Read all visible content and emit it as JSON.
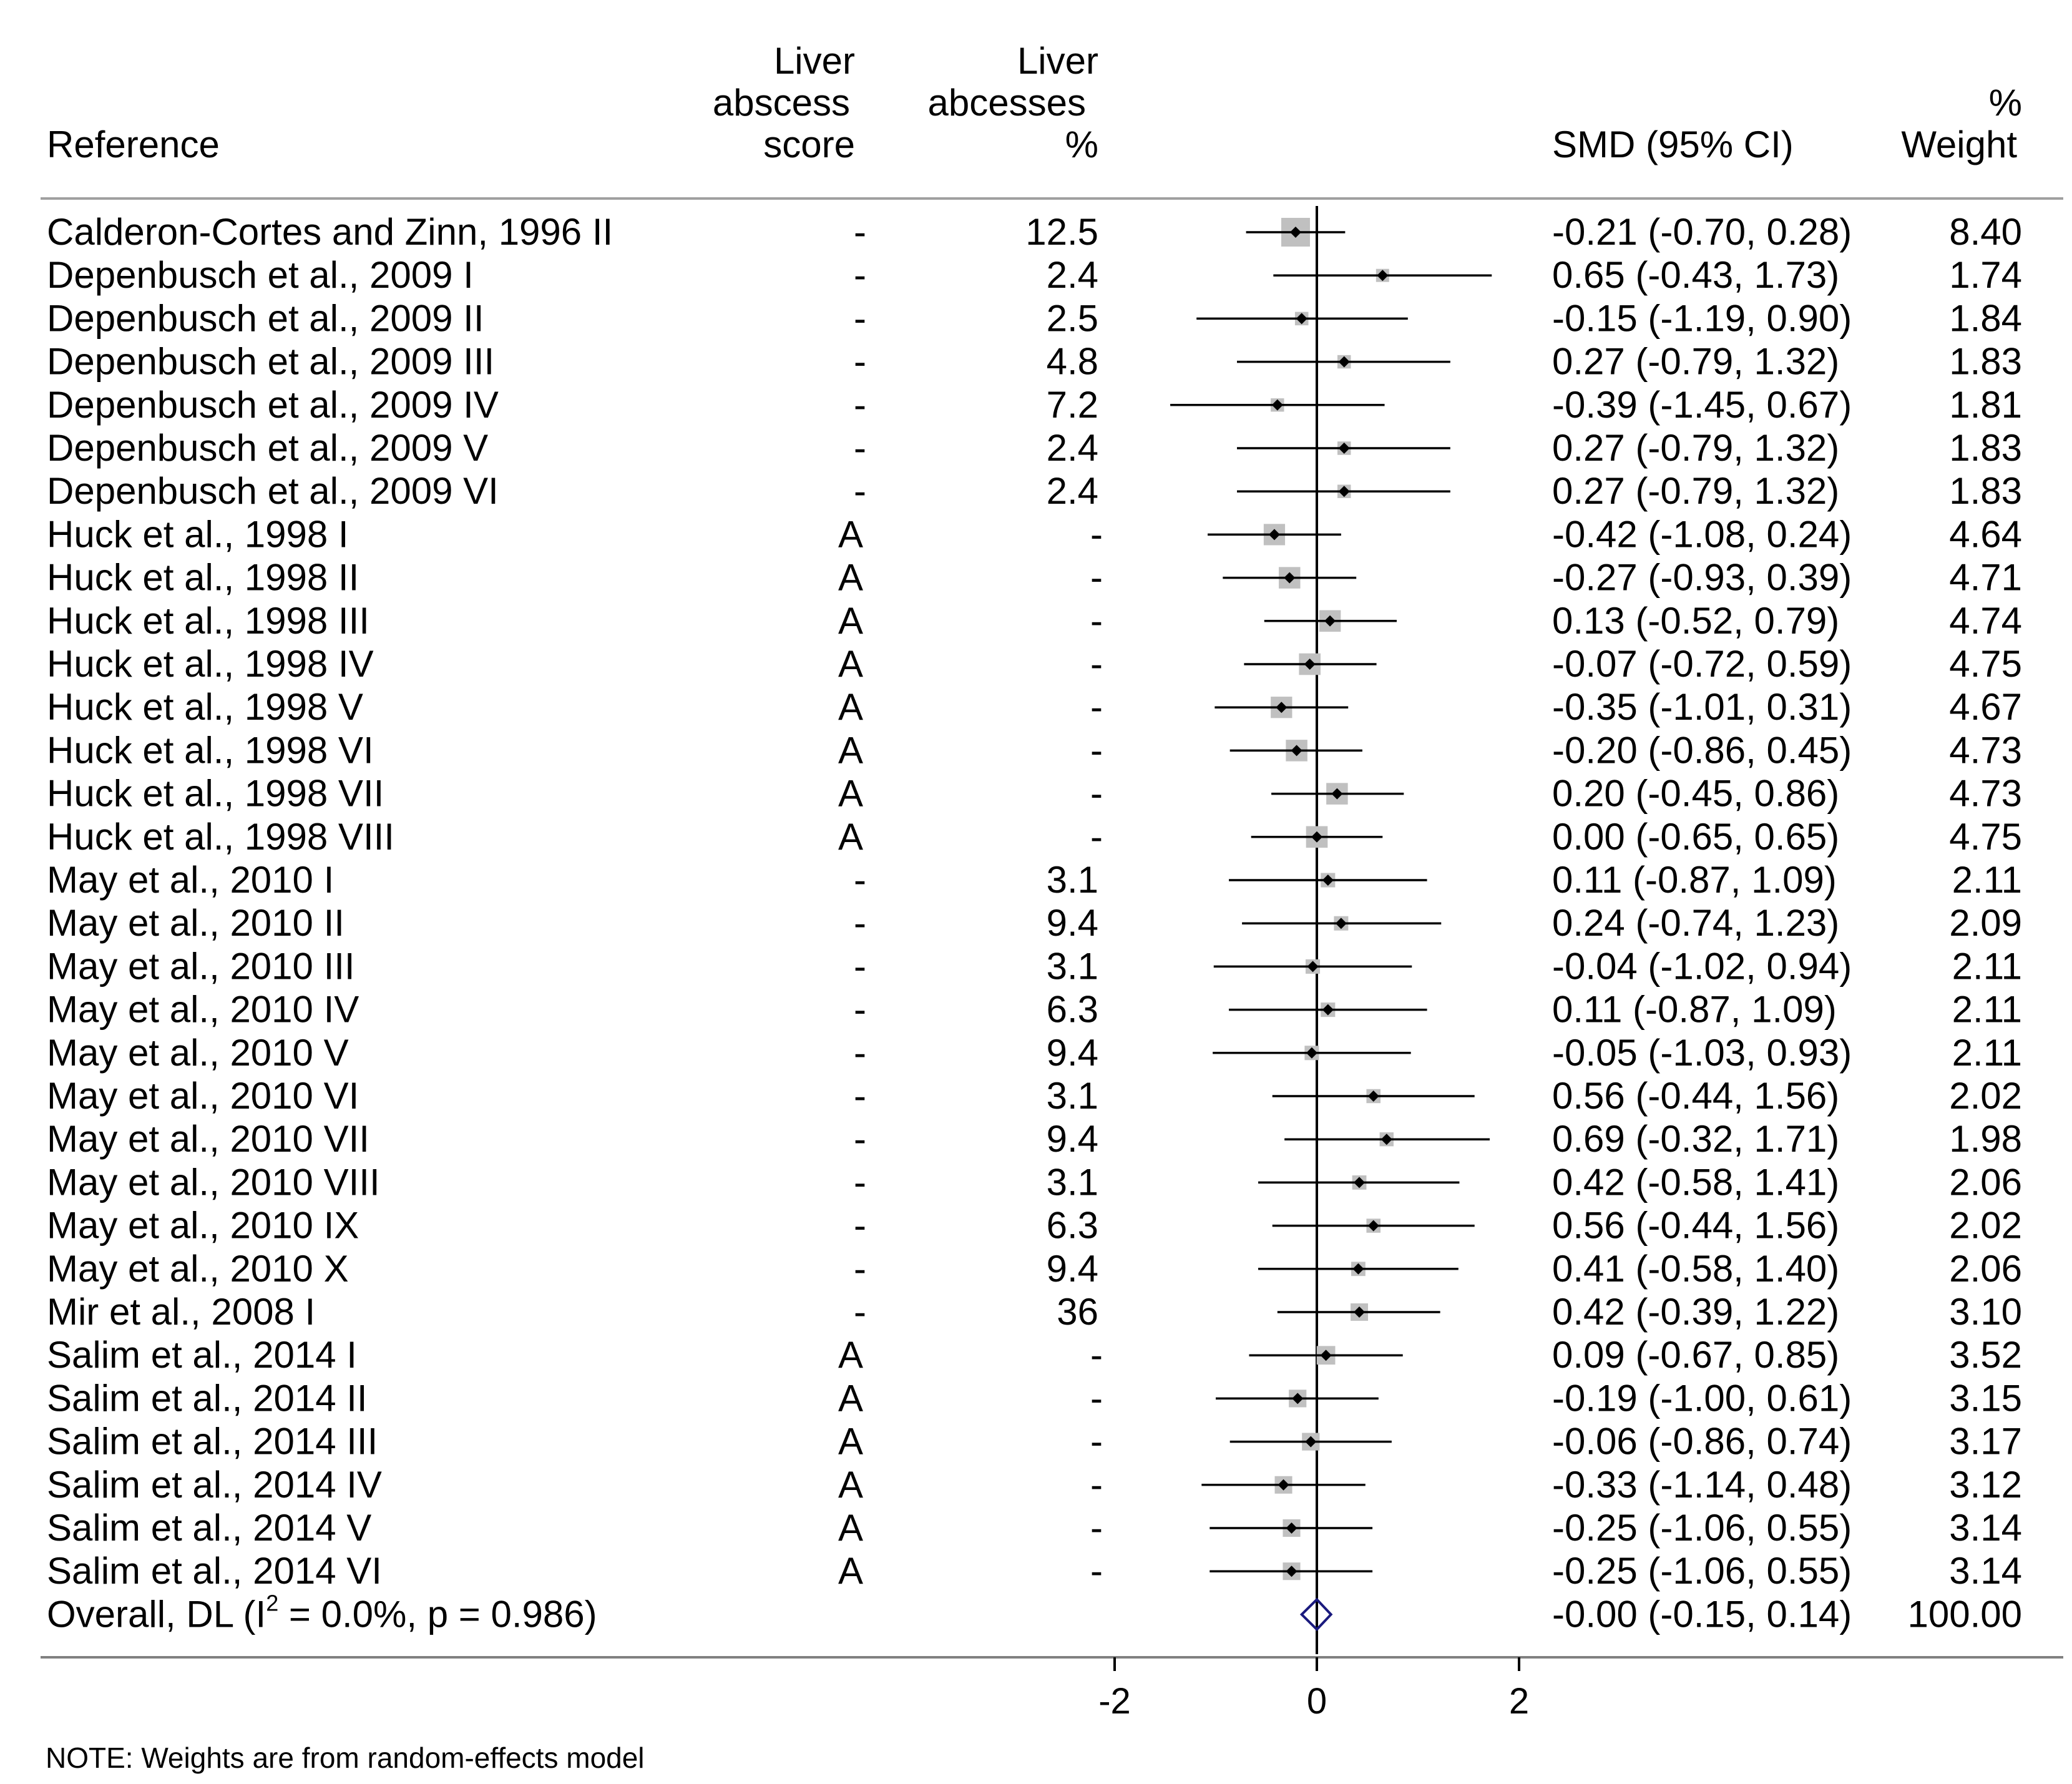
{
  "chart_data": {
    "type": "forest",
    "headers": {
      "reference": "Reference",
      "score": [
        "Liver",
        "abscess",
        "score"
      ],
      "abscesses": [
        "Liver",
        "abcesses",
        "%"
      ],
      "smd": "SMD (95% CI)",
      "weight": [
        "%",
        "Weight"
      ]
    },
    "studies": [
      {
        "label": "Calderon-Cortes and Zinn, 1996 II",
        "score": "-",
        "pct": "12.5",
        "smd": -0.21,
        "lo": -0.7,
        "hi": 0.28,
        "ci_text": "-0.21 (-0.70, 0.28)",
        "weight": 8.4,
        "weight_text": "8.40"
      },
      {
        "label": "Depenbusch et al., 2009 I",
        "score": "-",
        "pct": "2.4",
        "smd": 0.65,
        "lo": -0.43,
        "hi": 1.73,
        "ci_text": "0.65 (-0.43, 1.73)",
        "weight": 1.74,
        "weight_text": "1.74"
      },
      {
        "label": "Depenbusch et al., 2009 II",
        "score": "-",
        "pct": "2.5",
        "smd": -0.15,
        "lo": -1.19,
        "hi": 0.9,
        "ci_text": "-0.15 (-1.19, 0.90)",
        "weight": 1.84,
        "weight_text": "1.84"
      },
      {
        "label": "Depenbusch et al., 2009 III",
        "score": "-",
        "pct": "4.8",
        "smd": 0.27,
        "lo": -0.79,
        "hi": 1.32,
        "ci_text": "0.27 (-0.79, 1.32)",
        "weight": 1.83,
        "weight_text": "1.83"
      },
      {
        "label": "Depenbusch et al., 2009 IV",
        "score": "-",
        "pct": "7.2",
        "smd": -0.39,
        "lo": -1.45,
        "hi": 0.67,
        "ci_text": "-0.39 (-1.45, 0.67)",
        "weight": 1.81,
        "weight_text": "1.81"
      },
      {
        "label": "Depenbusch et al., 2009 V",
        "score": "-",
        "pct": "2.4",
        "smd": 0.27,
        "lo": -0.79,
        "hi": 1.32,
        "ci_text": "0.27 (-0.79, 1.32)",
        "weight": 1.83,
        "weight_text": "1.83"
      },
      {
        "label": "Depenbusch et al., 2009 VI",
        "score": "-",
        "pct": "2.4",
        "smd": 0.27,
        "lo": -0.79,
        "hi": 1.32,
        "ci_text": "0.27 (-0.79, 1.32)",
        "weight": 1.83,
        "weight_text": "1.83"
      },
      {
        "label": "Huck et al., 1998 I",
        "score": "A",
        "pct": "-",
        "smd": -0.42,
        "lo": -1.08,
        "hi": 0.24,
        "ci_text": "-0.42 (-1.08, 0.24)",
        "weight": 4.64,
        "weight_text": "4.64"
      },
      {
        "label": "Huck et al., 1998 II",
        "score": "A",
        "pct": "-",
        "smd": -0.27,
        "lo": -0.93,
        "hi": 0.39,
        "ci_text": "-0.27 (-0.93, 0.39)",
        "weight": 4.71,
        "weight_text": "4.71"
      },
      {
        "label": "Huck et al., 1998 III",
        "score": "A",
        "pct": "-",
        "smd": 0.13,
        "lo": -0.52,
        "hi": 0.79,
        "ci_text": "0.13 (-0.52, 0.79)",
        "weight": 4.74,
        "weight_text": "4.74"
      },
      {
        "label": "Huck et al., 1998 IV",
        "score": "A",
        "pct": "-",
        "smd": -0.07,
        "lo": -0.72,
        "hi": 0.59,
        "ci_text": "-0.07 (-0.72, 0.59)",
        "weight": 4.75,
        "weight_text": "4.75"
      },
      {
        "label": "Huck et al., 1998 V",
        "score": "A",
        "pct": "-",
        "smd": -0.35,
        "lo": -1.01,
        "hi": 0.31,
        "ci_text": "-0.35 (-1.01, 0.31)",
        "weight": 4.67,
        "weight_text": "4.67"
      },
      {
        "label": "Huck et al., 1998 VI",
        "score": "A",
        "pct": "-",
        "smd": -0.2,
        "lo": -0.86,
        "hi": 0.45,
        "ci_text": "-0.20 (-0.86, 0.45)",
        "weight": 4.73,
        "weight_text": "4.73"
      },
      {
        "label": "Huck et al., 1998 VII",
        "score": "A",
        "pct": "-",
        "smd": 0.2,
        "lo": -0.45,
        "hi": 0.86,
        "ci_text": "0.20 (-0.45, 0.86)",
        "weight": 4.73,
        "weight_text": "4.73"
      },
      {
        "label": "Huck et al., 1998 VIII",
        "score": "A",
        "pct": "-",
        "smd": 0.0,
        "lo": -0.65,
        "hi": 0.65,
        "ci_text": "0.00 (-0.65, 0.65)",
        "weight": 4.75,
        "weight_text": "4.75"
      },
      {
        "label": "May et al., 2010 I",
        "score": "-",
        "pct": "3.1",
        "smd": 0.11,
        "lo": -0.87,
        "hi": 1.09,
        "ci_text": "0.11 (-0.87, 1.09)",
        "weight": 2.11,
        "weight_text": "2.11"
      },
      {
        "label": "May et al., 2010 II",
        "score": "-",
        "pct": "9.4",
        "smd": 0.24,
        "lo": -0.74,
        "hi": 1.23,
        "ci_text": "0.24 (-0.74, 1.23)",
        "weight": 2.09,
        "weight_text": "2.09"
      },
      {
        "label": "May et al., 2010 III",
        "score": "-",
        "pct": "3.1",
        "smd": -0.04,
        "lo": -1.02,
        "hi": 0.94,
        "ci_text": "-0.04 (-1.02, 0.94)",
        "weight": 2.11,
        "weight_text": "2.11"
      },
      {
        "label": "May et al., 2010 IV",
        "score": "-",
        "pct": "6.3",
        "smd": 0.11,
        "lo": -0.87,
        "hi": 1.09,
        "ci_text": "0.11 (-0.87, 1.09)",
        "weight": 2.11,
        "weight_text": "2.11"
      },
      {
        "label": "May et al., 2010 V",
        "score": "-",
        "pct": "9.4",
        "smd": -0.05,
        "lo": -1.03,
        "hi": 0.93,
        "ci_text": "-0.05 (-1.03, 0.93)",
        "weight": 2.11,
        "weight_text": "2.11"
      },
      {
        "label": "May et al., 2010 VI",
        "score": "-",
        "pct": "3.1",
        "smd": 0.56,
        "lo": -0.44,
        "hi": 1.56,
        "ci_text": "0.56 (-0.44, 1.56)",
        "weight": 2.02,
        "weight_text": "2.02"
      },
      {
        "label": "May et al., 2010 VII",
        "score": "-",
        "pct": "9.4",
        "smd": 0.69,
        "lo": -0.32,
        "hi": 1.71,
        "ci_text": "0.69 (-0.32, 1.71)",
        "weight": 1.98,
        "weight_text": "1.98"
      },
      {
        "label": "May et al., 2010 VIII",
        "score": "-",
        "pct": "3.1",
        "smd": 0.42,
        "lo": -0.58,
        "hi": 1.41,
        "ci_text": "0.42 (-0.58, 1.41)",
        "weight": 2.06,
        "weight_text": "2.06"
      },
      {
        "label": "May et al., 2010 IX",
        "score": "-",
        "pct": "6.3",
        "smd": 0.56,
        "lo": -0.44,
        "hi": 1.56,
        "ci_text": "0.56 (-0.44, 1.56)",
        "weight": 2.02,
        "weight_text": "2.02"
      },
      {
        "label": "May et al., 2010 X",
        "score": "-",
        "pct": "9.4",
        "smd": 0.41,
        "lo": -0.58,
        "hi": 1.4,
        "ci_text": "0.41 (-0.58, 1.40)",
        "weight": 2.06,
        "weight_text": "2.06"
      },
      {
        "label": "Mir et al., 2008 I",
        "score": "-",
        "pct": "36",
        "smd": 0.42,
        "lo": -0.39,
        "hi": 1.22,
        "ci_text": "0.42 (-0.39, 1.22)",
        "weight": 3.1,
        "weight_text": "3.10"
      },
      {
        "label": "Salim et al., 2014 I",
        "score": "A",
        "pct": "-",
        "smd": 0.09,
        "lo": -0.67,
        "hi": 0.85,
        "ci_text": "0.09 (-0.67, 0.85)",
        "weight": 3.52,
        "weight_text": "3.52"
      },
      {
        "label": "Salim et al., 2014 II",
        "score": "A",
        "pct": "-",
        "smd": -0.19,
        "lo": -1.0,
        "hi": 0.61,
        "ci_text": "-0.19 (-1.00, 0.61)",
        "weight": 3.15,
        "weight_text": "3.15"
      },
      {
        "label": "Salim et al., 2014 III",
        "score": "A",
        "pct": "-",
        "smd": -0.06,
        "lo": -0.86,
        "hi": 0.74,
        "ci_text": "-0.06 (-0.86, 0.74)",
        "weight": 3.17,
        "weight_text": "3.17"
      },
      {
        "label": "Salim et al., 2014 IV",
        "score": "A",
        "pct": "-",
        "smd": -0.33,
        "lo": -1.14,
        "hi": 0.48,
        "ci_text": "-0.33 (-1.14, 0.48)",
        "weight": 3.12,
        "weight_text": "3.12"
      },
      {
        "label": "Salim et al., 2014 V",
        "score": "A",
        "pct": "-",
        "smd": -0.25,
        "lo": -1.06,
        "hi": 0.55,
        "ci_text": "-0.25 (-1.06, 0.55)",
        "weight": 3.14,
        "weight_text": "3.14"
      },
      {
        "label": "Salim et al., 2014 VI",
        "score": "A",
        "pct": "-",
        "smd": -0.25,
        "lo": -1.06,
        "hi": 0.55,
        "ci_text": "-0.25 (-1.06, 0.55)",
        "weight": 3.14,
        "weight_text": "3.14"
      }
    ],
    "overall": {
      "label_prefix": "Overall, DL (I",
      "label_sup": "2",
      "label_suffix": " = 0.0%, p = 0.986)",
      "smd": -0.0,
      "lo": -0.15,
      "hi": 0.14,
      "ci_text": "-0.00 (-0.15, 0.14)",
      "weight_text": "100.00"
    },
    "x_ticks": [
      -2,
      0,
      2
    ],
    "x_tick_labels": [
      "-2",
      "0",
      "2"
    ],
    "xlim": [
      -2,
      2
    ],
    "null_line": 0,
    "note": "NOTE: Weights are from random-effects model",
    "colors": {
      "text": "#000000",
      "box": "#c0c0c0",
      "ci": "#000000",
      "diamond": "#1a1a7e",
      "rule": "#808080"
    }
  }
}
